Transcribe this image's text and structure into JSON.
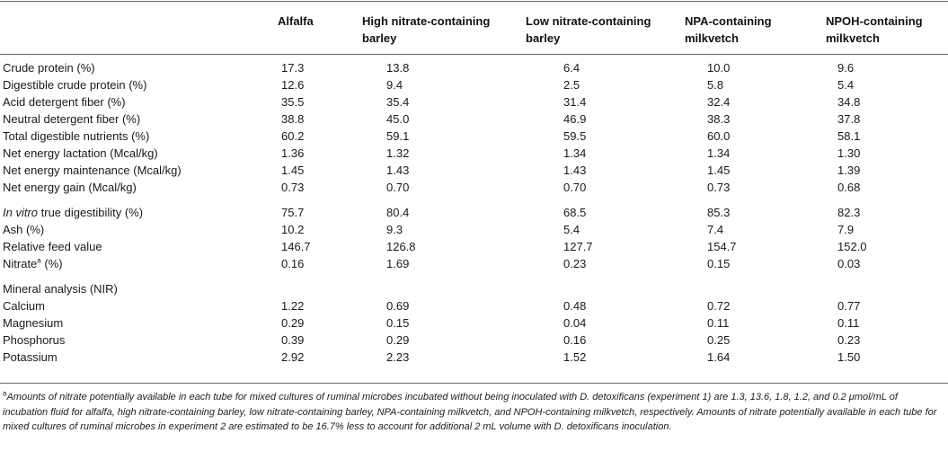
{
  "headers": {
    "col1": "Alfalfa",
    "col2_line1": "High nitrate-containing",
    "col2_line2": "barley",
    "col3_line1": "Low nitrate-containing",
    "col3_line2": "barley",
    "col4_line1": "NPA-containing",
    "col4_line2": "milkvetch",
    "col5_line1": "NPOH-containing",
    "col5_line2": "milkvetch"
  },
  "rows": [
    {
      "label": "Crude protein (%)",
      "v": [
        "17.3",
        "13.8",
        "6.4",
        "10.0",
        "9.6"
      ]
    },
    {
      "label": "Digestible crude protein (%)",
      "v": [
        "12.6",
        "9.4",
        "2.5",
        "5.8",
        "5.4"
      ]
    },
    {
      "label": "Acid detergent fiber (%)",
      "v": [
        "35.5",
        "35.4",
        "31.4",
        "32.4",
        "34.8"
      ]
    },
    {
      "label": "Neutral detergent fiber (%)",
      "v": [
        "38.8",
        "45.0",
        "46.9",
        "38.3",
        "37.8"
      ]
    },
    {
      "label": "Total digestible nutrients (%)",
      "v": [
        "60.2",
        "59.1",
        "59.5",
        "60.0",
        "58.1"
      ]
    },
    {
      "label": "Net energy lactation (Mcal/kg)",
      "v": [
        "1.36",
        "1.32",
        "1.34",
        "1.34",
        "1.30"
      ]
    },
    {
      "label": "Net energy maintenance (Mcal/kg)",
      "v": [
        "1.45",
        "1.43",
        "1.43",
        "1.45",
        "1.39"
      ]
    },
    {
      "label": "Net energy gain (Mcal/kg)",
      "v": [
        "0.73",
        "0.70",
        "0.70",
        "0.73",
        "0.68"
      ]
    },
    {
      "label_italic": "In vitro",
      "label_rest": " true digestibility (%)",
      "v": [
        "75.7",
        "80.4",
        "68.5",
        "85.3",
        "82.3"
      ]
    },
    {
      "label": "Ash (%)",
      "v": [
        "10.2",
        "9.3",
        "5.4",
        "7.4",
        "7.9"
      ]
    },
    {
      "label": "Relative feed value",
      "v": [
        "146.7",
        "126.8",
        "127.7",
        "154.7",
        "152.0"
      ]
    },
    {
      "label_main": "Nitrate",
      "label_sup": "a",
      "label_rest": " (%)",
      "v": [
        "0.16",
        "1.69",
        "0.23",
        "0.15",
        "0.03"
      ]
    },
    {
      "section": "Mineral analysis (NIR)"
    },
    {
      "label": "Calcium",
      "v": [
        "1.22",
        "0.69",
        "0.48",
        "0.72",
        "0.77"
      ]
    },
    {
      "label": "Magnesium",
      "v": [
        "0.29",
        "0.15",
        "0.04",
        "0.11",
        "0.11"
      ]
    },
    {
      "label": "Phosphorus",
      "v": [
        "0.39",
        "0.29",
        "0.16",
        "0.25",
        "0.23"
      ]
    },
    {
      "label": "Potassium",
      "v": [
        "2.92",
        "2.23",
        "1.52",
        "1.64",
        "1.50"
      ]
    }
  ],
  "footnote": {
    "sup": "a",
    "text": "Amounts of nitrate potentially available in each tube for mixed cultures of ruminal microbes incubated without being inoculated with D. detoxificans (experiment 1) are 1.3, 13.6, 1.8, 1.2, and 0.2 μmol/mL of incubation fluid for alfalfa, high nitrate-containing barley, low nitrate-containing barley, NPA-containing milkvetch, and NPOH-containing milkvetch, respectively. Amounts of nitrate potentially available in each tube for mixed cultures of ruminal microbes in experiment 2 are estimated to be 16.7% less to account for additional 2 mL volume with D. detoxificans inoculation."
  }
}
